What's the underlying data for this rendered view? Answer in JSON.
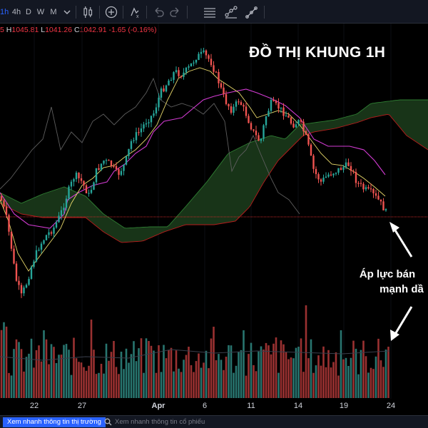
{
  "toolbar": {
    "timeframes": [
      {
        "label": "1h",
        "active": true
      },
      {
        "label": "4h",
        "active": false
      },
      {
        "label": "D",
        "active": false
      },
      {
        "label": "W",
        "active": false
      },
      {
        "label": "M",
        "active": false
      }
    ],
    "icons": [
      "chevron-down-icon",
      "candlestick-icon",
      "add-indicator-icon",
      "alert-icon",
      "undo-icon",
      "redo-icon",
      "horizontal-lines-icon",
      "line-tool-icon",
      "brush-icon"
    ]
  },
  "ohlc": {
    "open_partial": "5",
    "high_label": "H",
    "high": "1045.81",
    "low_label": "L",
    "low": "1041.26",
    "close_label": "C",
    "close": "1042.91",
    "change": "-1.65 (-0.16%)"
  },
  "overlay": {
    "title": "ĐỒ THỊ KHUNG 1H",
    "annotation_line1": "Áp lực bán",
    "annotation_line2": "mạnh dầ"
  },
  "xaxis": {
    "labels": [
      {
        "text": "22",
        "bold": false
      },
      {
        "text": "27",
        "bold": false
      },
      {
        "text": "Apr",
        "bold": true
      },
      {
        "text": "6",
        "bold": false
      },
      {
        "text": "11",
        "bold": false
      },
      {
        "text": "14",
        "bold": false
      },
      {
        "text": "19",
        "bold": false
      },
      {
        "text": "24",
        "bold": false
      }
    ]
  },
  "bottombar": {
    "market_tab": "Xem nhanh thông tin thị trường",
    "stock_search": "Xem nhanh thông tin cổ phiếu"
  },
  "colors": {
    "up": "#26a69a",
    "down": "#ef5350",
    "accent": "#2962ff",
    "background": "#000000",
    "cloud_bull": "#1b3a1b",
    "cloud_bear": "#5a0e10",
    "tenkan": "#e8d86a",
    "kijun": "#d23bd2",
    "chikou": "#5d5d5d"
  }
}
